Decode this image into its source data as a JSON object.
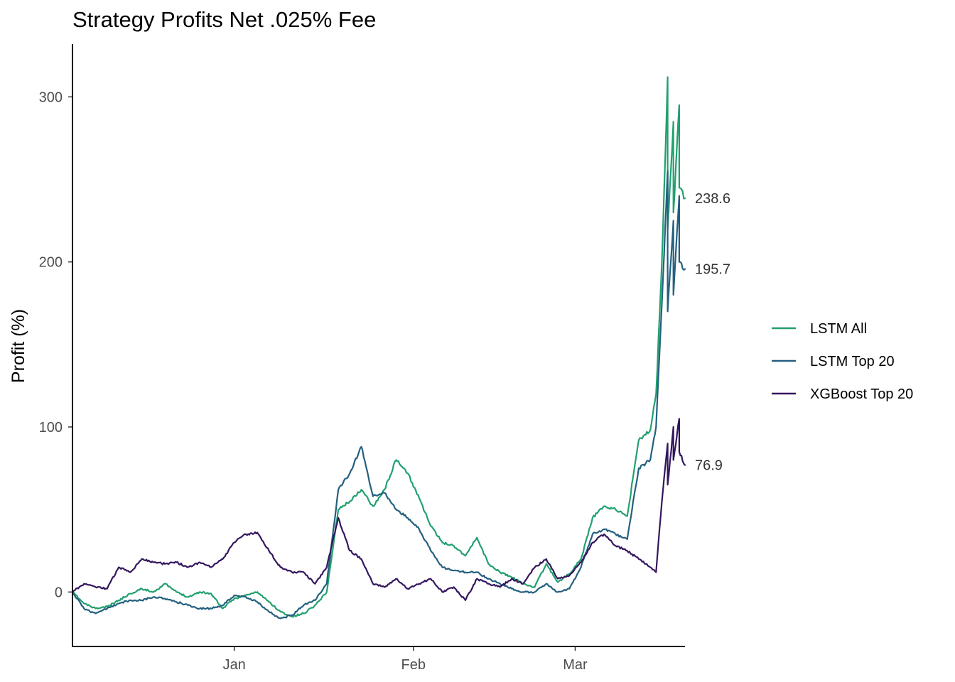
{
  "chart_data": {
    "type": "line",
    "title": "Strategy Profits Net .025% Fee",
    "xlabel": "",
    "ylabel": "Profit (%)",
    "ylim": [
      -33,
      332
    ],
    "y_ticks": [
      0,
      100,
      200,
      300
    ],
    "x_ticks": [
      {
        "label": "Jan",
        "date": "2018-01-01"
      },
      {
        "label": "Feb",
        "date": "2018-02-01"
      },
      {
        "label": "Mar",
        "date": "2018-03-01"
      }
    ],
    "xlim": [
      "2017-12-04",
      "2018-03-20"
    ],
    "grid": false,
    "legend_position": "right",
    "series": [
      {
        "name": "LSTM All",
        "color": "#22a06f",
        "end_label": "238.6",
        "points": [
          [
            "2017-12-04",
            0
          ],
          [
            "2017-12-06",
            -7
          ],
          [
            "2017-12-08",
            -10
          ],
          [
            "2017-12-10",
            -9
          ],
          [
            "2017-12-12",
            -5
          ],
          [
            "2017-12-14",
            -1
          ],
          [
            "2017-12-16",
            2
          ],
          [
            "2017-12-18",
            0
          ],
          [
            "2017-12-20",
            5
          ],
          [
            "2017-12-22",
            0
          ],
          [
            "2017-12-24",
            -3
          ],
          [
            "2017-12-26",
            0
          ],
          [
            "2017-12-28",
            -1
          ],
          [
            "2017-12-30",
            -10
          ],
          [
            "2018-01-01",
            -4
          ],
          [
            "2018-01-03",
            -2
          ],
          [
            "2018-01-05",
            0
          ],
          [
            "2018-01-07",
            -6
          ],
          [
            "2018-01-09",
            -12
          ],
          [
            "2018-01-11",
            -15
          ],
          [
            "2018-01-13",
            -13
          ],
          [
            "2018-01-15",
            -8
          ],
          [
            "2018-01-17",
            0
          ],
          [
            "2018-01-19",
            50
          ],
          [
            "2018-01-21",
            55
          ],
          [
            "2018-01-23",
            62
          ],
          [
            "2018-01-25",
            52
          ],
          [
            "2018-01-27",
            62
          ],
          [
            "2018-01-29",
            80
          ],
          [
            "2018-01-31",
            72
          ],
          [
            "2018-02-02",
            57
          ],
          [
            "2018-02-04",
            40
          ],
          [
            "2018-02-06",
            30
          ],
          [
            "2018-02-08",
            28
          ],
          [
            "2018-02-10",
            22
          ],
          [
            "2018-02-12",
            33
          ],
          [
            "2018-02-14",
            17
          ],
          [
            "2018-02-16",
            12
          ],
          [
            "2018-02-18",
            9
          ],
          [
            "2018-02-20",
            5
          ],
          [
            "2018-02-22",
            3
          ],
          [
            "2018-02-24",
            17
          ],
          [
            "2018-02-26",
            6
          ],
          [
            "2018-02-28",
            11
          ],
          [
            "2018-03-02",
            20
          ],
          [
            "2018-03-04",
            45
          ],
          [
            "2018-03-06",
            52
          ],
          [
            "2018-03-08",
            50
          ],
          [
            "2018-03-10",
            46
          ],
          [
            "2018-03-12",
            92
          ],
          [
            "2018-03-14",
            98
          ],
          [
            "2018-03-15",
            120
          ],
          [
            "2018-03-16",
            200
          ],
          [
            "2018-03-17",
            312
          ],
          [
            "2018-03-17",
            220
          ],
          [
            "2018-03-18",
            285
          ],
          [
            "2018-03-18",
            230
          ],
          [
            "2018-03-19",
            295
          ],
          [
            "2018-03-19",
            245
          ],
          [
            "2018-03-20",
            238.6
          ]
        ]
      },
      {
        "name": "LSTM Top 20",
        "color": "#24607f",
        "end_label": "195.7",
        "points": [
          [
            "2017-12-04",
            0
          ],
          [
            "2017-12-06",
            -10
          ],
          [
            "2017-12-08",
            -13
          ],
          [
            "2017-12-10",
            -10
          ],
          [
            "2017-12-12",
            -7
          ],
          [
            "2017-12-14",
            -5
          ],
          [
            "2017-12-16",
            -5
          ],
          [
            "2017-12-18",
            -3
          ],
          [
            "2017-12-20",
            -4
          ],
          [
            "2017-12-22",
            -6
          ],
          [
            "2017-12-24",
            -8
          ],
          [
            "2017-12-26",
            -10
          ],
          [
            "2017-12-28",
            -10
          ],
          [
            "2017-12-30",
            -8
          ],
          [
            "2018-01-01",
            -2
          ],
          [
            "2018-01-03",
            -3
          ],
          [
            "2018-01-05",
            -6
          ],
          [
            "2018-01-07",
            -12
          ],
          [
            "2018-01-09",
            -16
          ],
          [
            "2018-01-11",
            -14
          ],
          [
            "2018-01-13",
            -8
          ],
          [
            "2018-01-15",
            -5
          ],
          [
            "2018-01-17",
            5
          ],
          [
            "2018-01-19",
            62
          ],
          [
            "2018-01-21",
            72
          ],
          [
            "2018-01-23",
            88
          ],
          [
            "2018-01-25",
            58
          ],
          [
            "2018-01-27",
            60
          ],
          [
            "2018-01-29",
            50
          ],
          [
            "2018-01-31",
            45
          ],
          [
            "2018-02-02",
            38
          ],
          [
            "2018-02-04",
            25
          ],
          [
            "2018-02-06",
            15
          ],
          [
            "2018-02-08",
            13
          ],
          [
            "2018-02-10",
            12
          ],
          [
            "2018-02-12",
            12
          ],
          [
            "2018-02-14",
            8
          ],
          [
            "2018-02-16",
            5
          ],
          [
            "2018-02-18",
            2
          ],
          [
            "2018-02-20",
            0
          ],
          [
            "2018-02-22",
            0
          ],
          [
            "2018-02-24",
            5
          ],
          [
            "2018-02-26",
            0
          ],
          [
            "2018-02-28",
            2
          ],
          [
            "2018-03-02",
            15
          ],
          [
            "2018-03-04",
            35
          ],
          [
            "2018-03-06",
            38
          ],
          [
            "2018-03-08",
            35
          ],
          [
            "2018-03-10",
            32
          ],
          [
            "2018-03-12",
            75
          ],
          [
            "2018-03-14",
            80
          ],
          [
            "2018-03-15",
            100
          ],
          [
            "2018-03-16",
            175
          ],
          [
            "2018-03-17",
            255
          ],
          [
            "2018-03-17",
            170
          ],
          [
            "2018-03-18",
            225
          ],
          [
            "2018-03-18",
            180
          ],
          [
            "2018-03-19",
            240
          ],
          [
            "2018-03-19",
            200
          ],
          [
            "2018-03-20",
            195.7
          ]
        ]
      },
      {
        "name": "XGBoost Top 20",
        "color": "#34175e",
        "end_label": "76.9",
        "points": [
          [
            "2017-12-04",
            0
          ],
          [
            "2017-12-06",
            5
          ],
          [
            "2017-12-08",
            3
          ],
          [
            "2017-12-10",
            2
          ],
          [
            "2017-12-12",
            15
          ],
          [
            "2017-12-14",
            12
          ],
          [
            "2017-12-16",
            20
          ],
          [
            "2017-12-18",
            18
          ],
          [
            "2017-12-20",
            17
          ],
          [
            "2017-12-22",
            18
          ],
          [
            "2017-12-24",
            15
          ],
          [
            "2017-12-26",
            18
          ],
          [
            "2017-12-28",
            15
          ],
          [
            "2017-12-30",
            20
          ],
          [
            "2018-01-01",
            30
          ],
          [
            "2018-01-03",
            35
          ],
          [
            "2018-01-05",
            36
          ],
          [
            "2018-01-07",
            25
          ],
          [
            "2018-01-09",
            15
          ],
          [
            "2018-01-11",
            12
          ],
          [
            "2018-01-13",
            12
          ],
          [
            "2018-01-15",
            5
          ],
          [
            "2018-01-17",
            15
          ],
          [
            "2018-01-19",
            45
          ],
          [
            "2018-01-21",
            25
          ],
          [
            "2018-01-23",
            20
          ],
          [
            "2018-01-25",
            5
          ],
          [
            "2018-01-27",
            3
          ],
          [
            "2018-01-29",
            8
          ],
          [
            "2018-01-31",
            2
          ],
          [
            "2018-02-02",
            5
          ],
          [
            "2018-02-04",
            8
          ],
          [
            "2018-02-06",
            0
          ],
          [
            "2018-02-08",
            3
          ],
          [
            "2018-02-10",
            -5
          ],
          [
            "2018-02-12",
            8
          ],
          [
            "2018-02-14",
            5
          ],
          [
            "2018-02-16",
            3
          ],
          [
            "2018-02-18",
            8
          ],
          [
            "2018-02-20",
            5
          ],
          [
            "2018-02-22",
            15
          ],
          [
            "2018-02-24",
            20
          ],
          [
            "2018-02-26",
            8
          ],
          [
            "2018-02-28",
            10
          ],
          [
            "2018-03-02",
            18
          ],
          [
            "2018-03-04",
            30
          ],
          [
            "2018-03-06",
            35
          ],
          [
            "2018-03-08",
            28
          ],
          [
            "2018-03-10",
            25
          ],
          [
            "2018-03-12",
            20
          ],
          [
            "2018-03-14",
            15
          ],
          [
            "2018-03-15",
            12
          ],
          [
            "2018-03-16",
            55
          ],
          [
            "2018-03-17",
            90
          ],
          [
            "2018-03-17",
            65
          ],
          [
            "2018-03-18",
            100
          ],
          [
            "2018-03-18",
            80
          ],
          [
            "2018-03-19",
            105
          ],
          [
            "2018-03-19",
            85
          ],
          [
            "2018-03-20",
            76.9
          ]
        ]
      }
    ]
  }
}
